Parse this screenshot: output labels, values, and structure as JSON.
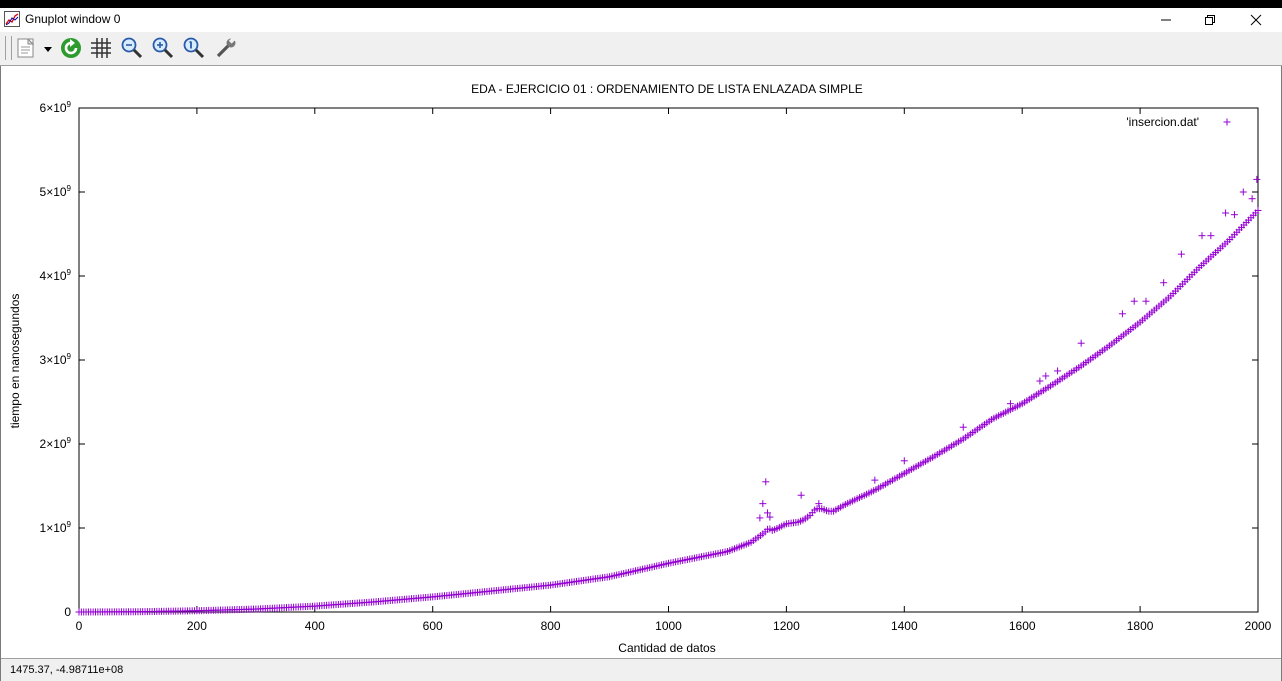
{
  "window": {
    "title": "Gnuplot window 0"
  },
  "toolbar": {
    "items": [
      {
        "name": "copy-options-icon"
      },
      {
        "name": "replot-icon"
      },
      {
        "name": "grid-icon"
      },
      {
        "name": "zoom-previous-icon"
      },
      {
        "name": "zoom-next-icon"
      },
      {
        "name": "autoscale-icon"
      },
      {
        "name": "options-wrench-icon"
      }
    ]
  },
  "colors": {
    "series": "#9400d3",
    "toolbar_bg": "#f0f0f0",
    "replot_green": "#2e9b2e"
  },
  "status": {
    "text": "1475.37, -4.98711e+08"
  },
  "chart_data": {
    "type": "scatter",
    "title": "EDA - EJERCICIO 01 : ORDENAMIENTO DE LISTA ENLAZADA SIMPLE",
    "xlabel": "Cantidad de datos",
    "ylabel": "tiempo en nanosegundos",
    "xlim": [
      0,
      2000
    ],
    "ylim": [
      0,
      6000000000
    ],
    "x_ticks": [
      "0",
      "200",
      "400",
      "600",
      "800",
      "1000",
      "1200",
      "1400",
      "1600",
      "1800",
      "2000"
    ],
    "y_ticks": [
      {
        "base": "0",
        "exp": ""
      },
      {
        "base": "1×10",
        "exp": "9"
      },
      {
        "base": "2×10",
        "exp": "9"
      },
      {
        "base": "3×10",
        "exp": "9"
      },
      {
        "base": "4×10",
        "exp": "9"
      },
      {
        "base": "5×10",
        "exp": "9"
      },
      {
        "base": "6×10",
        "exp": "9"
      }
    ],
    "legend": {
      "label": "'insercion.dat'",
      "position": "top-right"
    },
    "grid": false,
    "marker": "+",
    "series": [
      {
        "name": "'insercion.dat'",
        "x": [
          0,
          100,
          200,
          300,
          400,
          500,
          600,
          700,
          800,
          900,
          1000,
          1050,
          1100,
          1140,
          1150,
          1160,
          1165,
          1170,
          1175,
          1180,
          1200,
          1210,
          1220,
          1230,
          1240,
          1250,
          1260,
          1270,
          1280,
          1300,
          1350,
          1400,
          1450,
          1500,
          1550,
          1600,
          1650,
          1700,
          1750,
          1800,
          1850,
          1900,
          1950,
          2000,
          1155,
          1160,
          1165,
          1168,
          1172,
          1225,
          1255,
          1350,
          1400,
          1500,
          1580,
          1630,
          1640,
          1660,
          1700,
          1770,
          1790,
          1810,
          1840,
          1870,
          1905,
          1920,
          1945,
          1960,
          1975,
          1990,
          1998
        ],
        "y": [
          0,
          3000000,
          15000000,
          35000000,
          70000000,
          120000000,
          180000000,
          250000000,
          320000000,
          420000000,
          580000000,
          650000000,
          720000000,
          830000000,
          880000000,
          930000000,
          960000000,
          1000000000,
          970000000,
          980000000,
          1050000000,
          1060000000,
          1070000000,
          1100000000,
          1150000000,
          1230000000,
          1230000000,
          1200000000,
          1200000000,
          1280000000,
          1450000000,
          1650000000,
          1850000000,
          2060000000,
          2300000000,
          2480000000,
          2700000000,
          2930000000,
          3180000000,
          3450000000,
          3750000000,
          4100000000,
          4420000000,
          4780000000,
          1120000000,
          1290000000,
          1550000000,
          1180000000,
          1130000000,
          1390000000,
          1290000000,
          1570000000,
          1800000000,
          2200000000,
          2480000000,
          2750000000,
          2810000000,
          2870000000,
          3200000000,
          3550000000,
          3700000000,
          3700000000,
          3920000000,
          4260000000,
          4480000000,
          4480000000,
          4750000000,
          4730000000,
          5000000000,
          4920000000,
          5150000000
        ]
      }
    ]
  }
}
